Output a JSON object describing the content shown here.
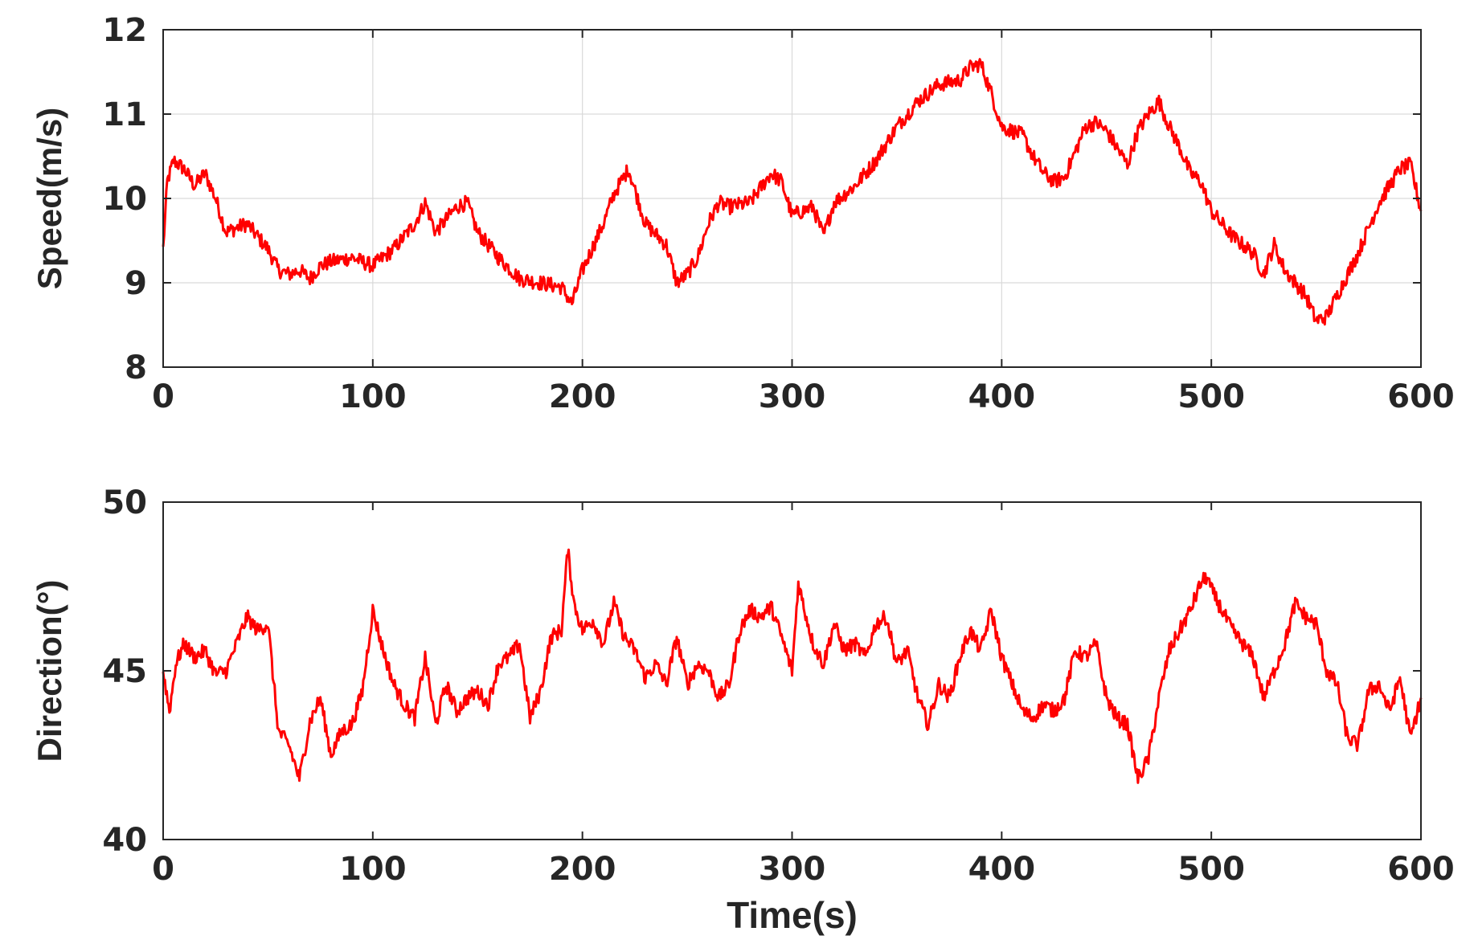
{
  "chart_data": [
    {
      "type": "line",
      "ylabel": "Speed(m/s)",
      "xlabel": "",
      "xlim": [
        0,
        600
      ],
      "ylim": [
        8,
        12
      ],
      "xticks": [
        "0",
        "100",
        "200",
        "300",
        "400",
        "500",
        "600"
      ],
      "yticks": [
        "8",
        "9",
        "10",
        "11",
        "12"
      ],
      "grid": true,
      "color": "#ff0000",
      "series": [
        {
          "x": [
            0,
            2,
            5,
            10,
            15,
            20,
            25,
            30,
            35,
            40,
            45,
            50,
            55,
            60,
            65,
            70,
            75,
            80,
            90,
            100,
            110,
            120,
            125,
            130,
            135,
            140,
            145,
            150,
            155,
            160,
            170,
            180,
            190,
            195,
            200,
            210,
            215,
            222,
            230,
            240,
            245,
            250,
            255,
            260,
            265,
            270,
            280,
            290,
            295,
            300,
            305,
            310,
            315,
            320,
            330,
            340,
            350,
            360,
            370,
            380,
            385,
            390,
            395,
            400,
            405,
            410,
            415,
            420,
            425,
            430,
            440,
            445,
            450,
            455,
            460,
            465,
            470,
            475,
            480,
            485,
            490,
            495,
            500,
            510,
            520,
            525,
            530,
            535,
            540,
            545,
            550,
            555,
            560,
            570,
            580,
            585,
            590,
            595,
            600
          ],
          "values": [
            9.4,
            10.2,
            10.45,
            10.35,
            10.15,
            10.3,
            10.0,
            9.6,
            9.65,
            9.7,
            9.55,
            9.4,
            9.15,
            9.1,
            9.15,
            9.05,
            9.2,
            9.25,
            9.3,
            9.2,
            9.4,
            9.7,
            9.95,
            9.6,
            9.75,
            9.9,
            9.95,
            9.6,
            9.45,
            9.3,
            9.05,
            9.0,
            8.95,
            8.75,
            9.15,
            9.7,
            10.05,
            10.35,
            9.7,
            9.45,
            9.0,
            9.1,
            9.3,
            9.7,
            9.95,
            9.9,
            9.95,
            10.3,
            10.2,
            9.8,
            9.85,
            9.9,
            9.55,
            9.95,
            10.15,
            10.45,
            10.85,
            11.15,
            11.35,
            11.4,
            11.55,
            11.6,
            11.25,
            10.85,
            10.8,
            10.75,
            10.5,
            10.3,
            10.2,
            10.25,
            10.85,
            10.9,
            10.8,
            10.6,
            10.4,
            10.8,
            11.0,
            11.15,
            10.85,
            10.6,
            10.3,
            10.2,
            9.85,
            9.55,
            9.35,
            9.1,
            9.45,
            9.15,
            9.0,
            8.85,
            8.55,
            8.6,
            8.85,
            9.35,
            9.95,
            10.15,
            10.35,
            10.4,
            9.85
          ]
        }
      ]
    },
    {
      "type": "line",
      "ylabel": "Direction(°)",
      "xlabel": "Time(s)",
      "xlim": [
        0,
        600
      ],
      "ylim": [
        40,
        50
      ],
      "xticks": [
        "0",
        "100",
        "200",
        "300",
        "400",
        "500",
        "600"
      ],
      "yticks": [
        "40",
        "45",
        "50"
      ],
      "grid": false,
      "color": "#ff0000",
      "series": [
        {
          "x": [
            0,
            3,
            6,
            10,
            15,
            20,
            25,
            30,
            35,
            40,
            45,
            50,
            55,
            60,
            65,
            70,
            75,
            80,
            85,
            90,
            95,
            100,
            105,
            110,
            115,
            120,
            125,
            130,
            135,
            140,
            145,
            150,
            155,
            160,
            165,
            170,
            175,
            180,
            185,
            190,
            193,
            196,
            200,
            205,
            210,
            215,
            220,
            225,
            230,
            235,
            240,
            245,
            250,
            255,
            260,
            265,
            270,
            275,
            280,
            285,
            290,
            295,
            300,
            303,
            306,
            310,
            315,
            320,
            325,
            330,
            335,
            340,
            345,
            350,
            355,
            360,
            365,
            370,
            375,
            380,
            385,
            390,
            395,
            400,
            405,
            410,
            415,
            420,
            425,
            430,
            435,
            440,
            445,
            450,
            455,
            460,
            465,
            470,
            475,
            480,
            485,
            490,
            495,
            498,
            500,
            505,
            510,
            515,
            520,
            525,
            530,
            535,
            540,
            545,
            550,
            555,
            560,
            565,
            570,
            575,
            580,
            585,
            590,
            595,
            600
          ],
          "values": [
            45.0,
            43.8,
            45.2,
            45.8,
            45.4,
            45.6,
            44.9,
            45.0,
            45.8,
            46.6,
            46.2,
            46.4,
            43.2,
            42.8,
            41.8,
            43.5,
            44.2,
            42.5,
            43.2,
            43.4,
            44.4,
            46.8,
            45.6,
            44.6,
            44.0,
            43.6,
            45.4,
            43.4,
            44.6,
            43.8,
            44.2,
            44.4,
            44.0,
            45.2,
            45.4,
            45.8,
            43.6,
            44.4,
            46.0,
            46.2,
            48.6,
            47.0,
            46.2,
            46.5,
            45.8,
            47.0,
            46.0,
            45.6,
            44.8,
            45.2,
            44.6,
            46.0,
            44.6,
            45.2,
            45.0,
            44.2,
            44.6,
            46.2,
            46.8,
            46.6,
            46.9,
            46.0,
            45.0,
            47.6,
            46.8,
            45.8,
            45.2,
            46.4,
            45.6,
            45.8,
            45.4,
            46.4,
            46.6,
            45.2,
            45.6,
            44.2,
            43.4,
            44.6,
            44.2,
            45.4,
            46.2,
            45.6,
            46.8,
            45.4,
            44.6,
            43.8,
            43.6,
            44.0,
            43.8,
            44.2,
            45.6,
            45.4,
            45.8,
            44.2,
            43.6,
            43.4,
            41.8,
            42.4,
            44.2,
            45.6,
            46.2,
            46.8,
            47.6,
            47.8,
            47.4,
            46.8,
            46.2,
            45.8,
            45.4,
            44.2,
            45.0,
            45.8,
            47.0,
            46.6,
            46.4,
            45.0,
            44.6,
            43.0,
            42.8,
            44.4,
            44.6,
            43.8,
            44.8,
            43.0,
            44.2
          ]
        }
      ]
    }
  ]
}
